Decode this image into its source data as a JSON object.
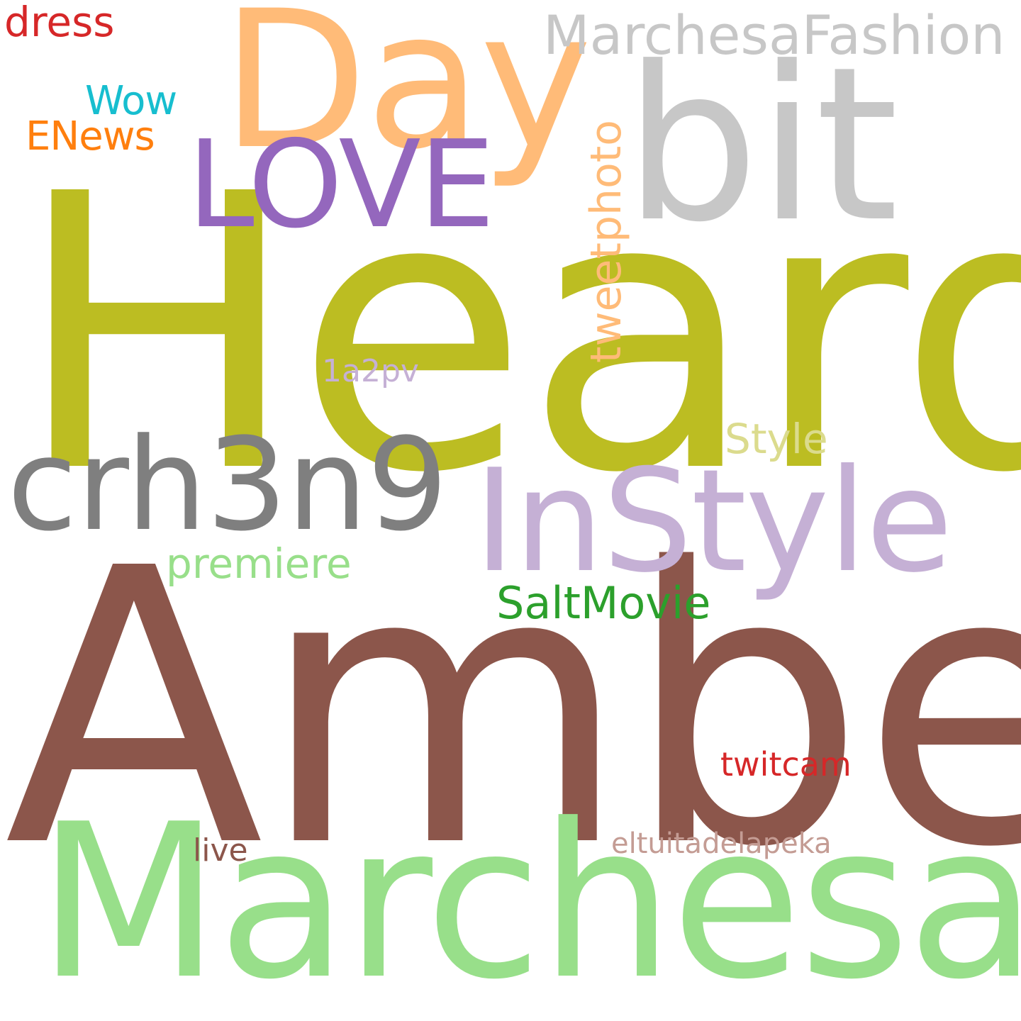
{
  "words": [
    {
      "id": "heard",
      "text": "Heard",
      "color": "#bcbd22"
    },
    {
      "id": "amber",
      "text": "Amber",
      "color": "#8c564b"
    },
    {
      "id": "marchesa",
      "text": "Marchesa",
      "color": "#98df8a"
    },
    {
      "id": "day",
      "text": "Day",
      "color": "#ffbb78"
    },
    {
      "id": "bit",
      "text": "bit",
      "color": "#c7c7c7"
    },
    {
      "id": "instyle",
      "text": "InStyle",
      "color": "#c5b0d5"
    },
    {
      "id": "crh3n9",
      "text": "crh3n9",
      "color": "#7f7f7f"
    },
    {
      "id": "love",
      "text": "LOVE",
      "color": "#9467bd"
    },
    {
      "id": "marchesafashion",
      "text": "MarchesaFashion",
      "color": "#c7c7c7"
    },
    {
      "id": "tweetphoto",
      "text": "tweetphoto",
      "color": "#ffbb78"
    },
    {
      "id": "saltmovie",
      "text": "SaltMovie",
      "color": "#2ca02c"
    },
    {
      "id": "premiere",
      "text": "premiere",
      "color": "#98df8a"
    },
    {
      "id": "style",
      "text": "Style",
      "color": "#dbdb8d"
    },
    {
      "id": "dress",
      "text": "dress",
      "color": "#d62728"
    },
    {
      "id": "enews",
      "text": "ENews",
      "color": "#ff7f0e"
    },
    {
      "id": "wow",
      "text": "Wow",
      "color": "#17becf"
    },
    {
      "id": "twitcam",
      "text": "twitcam",
      "color": "#d62728"
    },
    {
      "id": "eltuitadelapeka",
      "text": "eltuitadelapeka",
      "color": "#c49c94"
    },
    {
      "id": "1a2pv",
      "text": "1a2pv",
      "color": "#c5b0d5"
    },
    {
      "id": "live",
      "text": "live",
      "color": "#8c564b"
    }
  ]
}
